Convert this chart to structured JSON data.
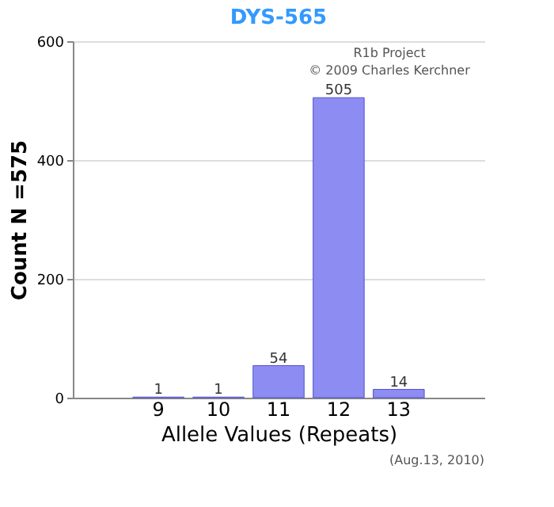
{
  "chart_data": {
    "type": "bar",
    "title": "DYS-565",
    "xlabel": "Allele Values (Repeats)",
    "ylabel": "Count N =575",
    "categories": [
      "9",
      "10",
      "11",
      "12",
      "13"
    ],
    "values": [
      1,
      1,
      54,
      505,
      14
    ],
    "color": "#8c8cf2",
    "ylim": [
      0,
      600
    ],
    "yticks": [
      0,
      200,
      400,
      600
    ],
    "grid": "y",
    "data_labels": true,
    "annotations": [
      "R1b Project",
      "© 2009 Charles Kerchner",
      "(Aug.13, 2010)"
    ]
  }
}
